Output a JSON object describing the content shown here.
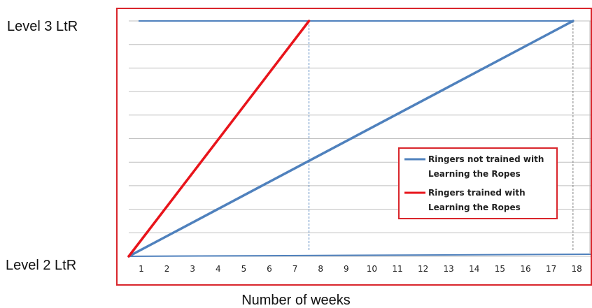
{
  "chart_data": {
    "type": "line",
    "xlabel": "Number of weeks",
    "y_levels": [
      "Level 2 LtR",
      "Level 3 LtR"
    ],
    "x_ticks": [
      "1",
      "2",
      "3",
      "4",
      "5",
      "6",
      "7",
      "8",
      "9",
      "10",
      "11",
      "12",
      "13",
      "14",
      "15",
      "16",
      "17",
      "18"
    ],
    "xlim": [
      0.5,
      18.5
    ],
    "ylim": [
      0,
      10
    ],
    "grid": true,
    "legend_position": "right",
    "series": [
      {
        "name": "Ringers not trained with Learning the Ropes",
        "legend_lines": [
          "Ringers not trained with",
          "Learning the Ropes"
        ],
        "color": "#4f81bd",
        "points": [
          [
            0.5,
            0
          ],
          [
            18,
            10
          ]
        ],
        "drop_x": 18
      },
      {
        "name": "Ringers trained with Learning the Ropes",
        "legend_lines": [
          "Ringers trained with",
          "Learning the Ropes"
        ],
        "color": "#e8141b",
        "points": [
          [
            0.5,
            0
          ],
          [
            7.6,
            10
          ]
        ],
        "drop_x": 7.6
      }
    ],
    "frame_color": "#d9262c",
    "grid_color": "#bfbfbf"
  }
}
